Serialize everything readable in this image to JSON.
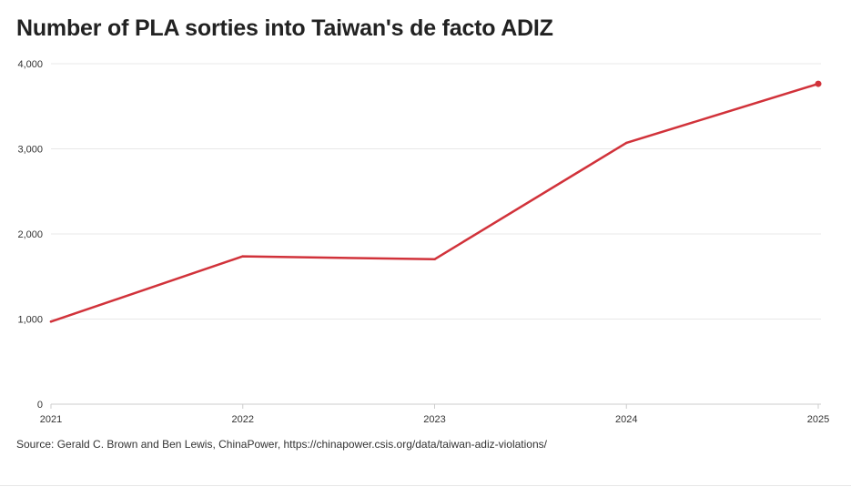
{
  "title": "Number of PLA sorties into Taiwan's de facto ADIZ",
  "source": "Source: Gerald C. Brown and Ben Lewis, ChinaPower, https://chinapower.csis.org/data/taiwan-adiz-violations/",
  "colors": {
    "line": "#d1323a",
    "grid": "#e8e8e8",
    "axis": "#cccccc"
  },
  "chart_data": {
    "type": "line",
    "title": "Number of PLA sorties into Taiwan's de facto ADIZ",
    "xlabel": "",
    "ylabel": "",
    "x": [
      "2021",
      "2022",
      "2023",
      "2024",
      "2025"
    ],
    "y_ticks": [
      0,
      1000,
      2000,
      3000,
      4000
    ],
    "y_tick_labels": [
      "0",
      "1,000",
      "2,000",
      "3,000",
      "4,000"
    ],
    "ylim": [
      0,
      4000
    ],
    "grid": true,
    "end_marker": true,
    "series": [
      {
        "values": [
          970,
          1737,
          1703,
          3070,
          3764
        ]
      }
    ]
  }
}
